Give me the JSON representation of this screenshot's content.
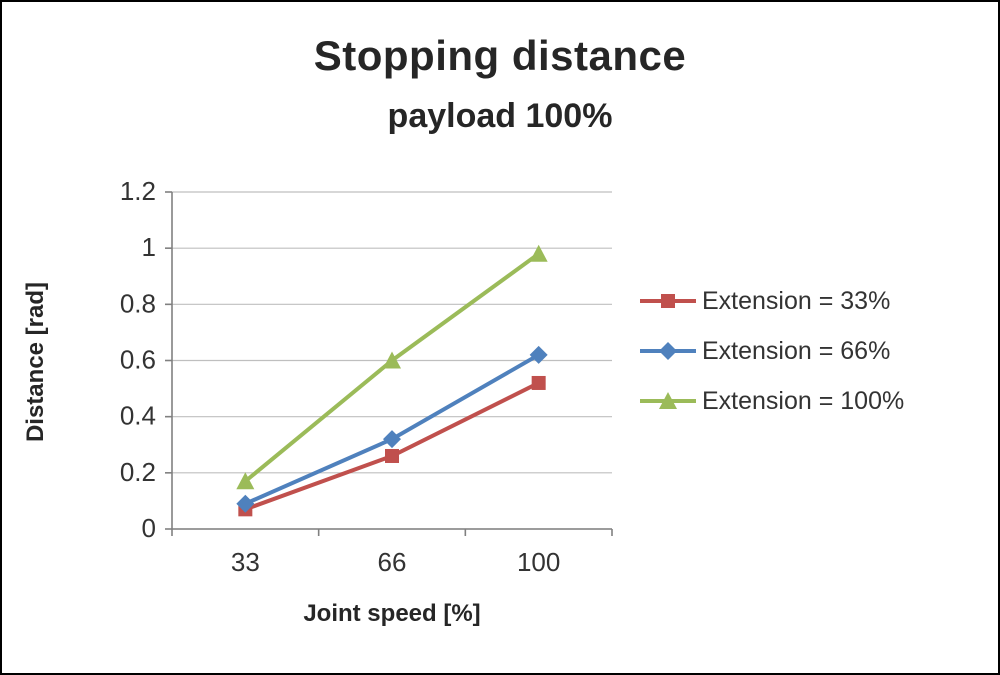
{
  "chart_data": {
    "type": "line",
    "title": "Stopping distance",
    "subtitle": "payload 100%",
    "xlabel": "Joint speed [%]",
    "ylabel": "Distance [rad]",
    "categories": [
      "33",
      "66",
      "100"
    ],
    "yticks": [
      "0",
      "0.2",
      "0.4",
      "0.6",
      "0.8",
      "1",
      "1.2"
    ],
    "ylim": [
      0,
      1.2
    ],
    "grid": true,
    "legend_position": "right",
    "series": [
      {
        "name": "Extension = 33%",
        "color": "#C0504D",
        "marker": "square",
        "values": [
          0.07,
          0.26,
          0.52
        ]
      },
      {
        "name": "Extension = 66%",
        "color": "#4F81BD",
        "marker": "diamond",
        "values": [
          0.09,
          0.32,
          0.62
        ]
      },
      {
        "name": "Extension = 100%",
        "color": "#9BBB59",
        "marker": "triangle",
        "values": [
          0.17,
          0.6,
          0.98
        ]
      }
    ],
    "colors": {
      "gridline": "#BFBFBF",
      "axis": "#808080",
      "tick_text": "#333333"
    }
  }
}
